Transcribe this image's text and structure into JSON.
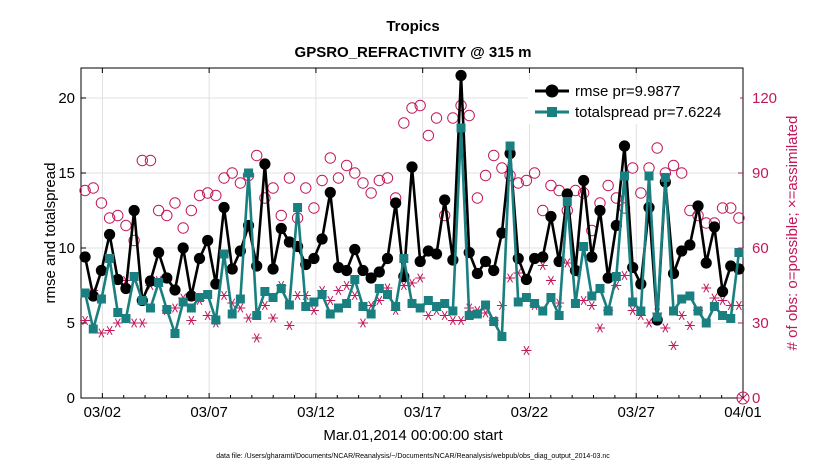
{
  "chart_data": {
    "type": "line",
    "title": "Tropics",
    "subtitle": "GPSRO_REFRACTIVITY @ 315 m",
    "xlabel": "Mar.01,2014 00:00:00 start",
    "ylabel": "rmse and totalspread",
    "y2label": "# of obs: o=possible; ×=assimilated",
    "footer": "data file: /Users/gharamti/Documents/NCAR/Reanalysis/~/Documents/NCAR/Reanalysis/webpub/obs_diag_output_2014-03.nc",
    "xlim": [
      0,
      31
    ],
    "ylim": [
      0,
      22
    ],
    "y2lim": [
      0,
      132
    ],
    "x_ticks": [
      1,
      6,
      11,
      16,
      21,
      26,
      31
    ],
    "x_tick_labels": [
      "03/02",
      "03/07",
      "03/12",
      "03/17",
      "03/22",
      "03/27",
      "04/01"
    ],
    "y_ticks": [
      0,
      5,
      10,
      15,
      20
    ],
    "y2_ticks": [
      0,
      30,
      60,
      90,
      120
    ],
    "legend_position": "top-right",
    "colors": {
      "rmse": "#000000",
      "totalspread": "#1a7f80",
      "obs": "#c2185b"
    },
    "series": [
      {
        "name": "rmse",
        "legend": "rmse pr=9.9877",
        "axis": "left",
        "marker": "filled-circle",
        "values": [
          9.4,
          6.8,
          8.5,
          10.9,
          7.9,
          7.3,
          12.5,
          6.5,
          7.8,
          9.7,
          8.0,
          7.2,
          10.0,
          6.8,
          9.3,
          10.5,
          7.6,
          12.7,
          8.6,
          9.8,
          11.5,
          8.8,
          15.6,
          8.6,
          11.3,
          10.4,
          10.1,
          8.9,
          9.3,
          10.6,
          13.7,
          8.7,
          8.5,
          9.9,
          8.5,
          8.0,
          8.4,
          9.3,
          13.0,
          8.1,
          15.4,
          9.1,
          9.8,
          9.6,
          13.2,
          9.2,
          21.5,
          9.7,
          8.3,
          9.1,
          8.5,
          11.0,
          16.3,
          9.3,
          7.9,
          9.3,
          9.4,
          12.1,
          9.1,
          13.6,
          8.5,
          14.5,
          9.4,
          12.5,
          8.0,
          11.5,
          16.8,
          8.7,
          7.6,
          12.7,
          5.2,
          14.4,
          8.3,
          9.8,
          10.2,
          12.8,
          9.0,
          11.4,
          7.1,
          8.8,
          8.6
        ]
      },
      {
        "name": "totalspread",
        "legend": "totalspread pr=7.6224",
        "axis": "left",
        "marker": "filled-square",
        "values": [
          7.0,
          4.6,
          6.6,
          9.3,
          5.7,
          5.3,
          8.1,
          6.5,
          6.0,
          7.7,
          5.9,
          4.3,
          6.4,
          6.0,
          6.7,
          6.9,
          5.2,
          9.6,
          5.6,
          6.6,
          15.0,
          5.5,
          7.1,
          6.7,
          7.3,
          6.2,
          12.7,
          6.1,
          6.4,
          6.9,
          5.6,
          6.0,
          6.3,
          7.9,
          6.1,
          5.6,
          7.3,
          6.9,
          6.1,
          9.3,
          6.3,
          6.0,
          6.5,
          6.1,
          6.3,
          5.8,
          18.0,
          5.5,
          5.6,
          6.2,
          5.1,
          4.1,
          16.8,
          6.4,
          6.7,
          6.3,
          5.8,
          6.7,
          5.5,
          13.1,
          6.3,
          10.1,
          6.8,
          7.3,
          5.8,
          8.1,
          14.8,
          6.4,
          5.8,
          14.8,
          5.4,
          14.7,
          5.8,
          6.6,
          6.8,
          5.8,
          5.0,
          6.1,
          5.5,
          5.3,
          9.7
        ]
      },
      {
        "name": "possible",
        "axis": "right",
        "marker": "open-circle",
        "values": [
          83,
          84,
          78,
          72,
          73,
          69,
          63,
          95,
          95,
          75,
          73,
          78,
          68,
          75,
          81,
          82,
          81,
          88,
          90,
          86,
          89,
          97,
          80,
          84,
          73,
          88,
          72,
          84,
          76,
          87,
          96,
          88,
          93,
          90,
          86,
          82,
          87,
          88,
          80,
          110,
          116,
          117,
          105,
          112,
          73,
          112,
          117,
          113,
          80,
          89,
          97,
          92,
          89,
          86,
          87,
          90,
          75,
          85,
          83,
          75,
          83,
          82,
          67,
          78,
          85,
          80,
          76,
          92,
          82,
          92,
          100,
          90,
          93,
          90,
          75,
          73,
          70,
          70,
          76,
          76,
          72
        ]
      },
      {
        "name": "assimilated",
        "axis": "right",
        "marker": "asterisk",
        "values": [
          31,
          43,
          26,
          27,
          30,
          47,
          30,
          30,
          45,
          47,
          35,
          36,
          40,
          31,
          39,
          33,
          30,
          41,
          38,
          36,
          32,
          24,
          37,
          32,
          45,
          29,
          41,
          41,
          35,
          43,
          39,
          43,
          45,
          41,
          30,
          37,
          39,
          44,
          35,
          45,
          46,
          48,
          33,
          35,
          33,
          31,
          31,
          36,
          35,
          34,
          31,
          37,
          48,
          50,
          19,
          37,
          53,
          47,
          38,
          54,
          50,
          39,
          37,
          28,
          35,
          45,
          49,
          35,
          33,
          30,
          34,
          28,
          21,
          33,
          29,
          35,
          44,
          40,
          39,
          37,
          37
        ]
      }
    ]
  }
}
